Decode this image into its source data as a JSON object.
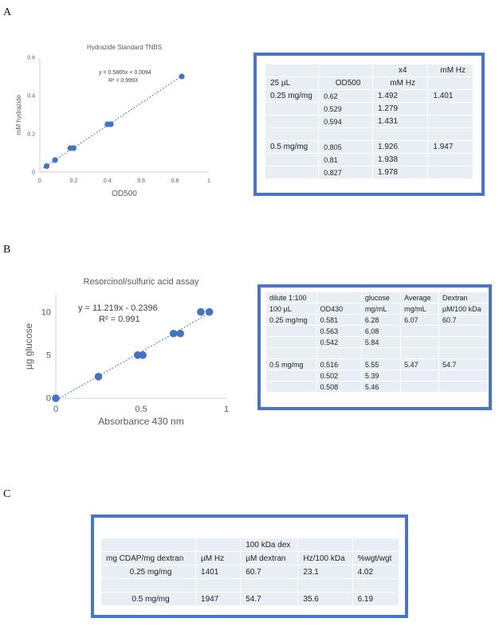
{
  "panels": {
    "a": "A",
    "b": "B",
    "c": "C"
  },
  "chart_data": [
    {
      "type": "scatter",
      "title": "Hydrazide Standard TNBS",
      "xlabel": "OD500",
      "ylabel": "mM hydrazide",
      "xlim": [
        0,
        1
      ],
      "ylim": [
        0,
        0.6
      ],
      "xticks": [
        0,
        0.2,
        0.4,
        0.6,
        0.8,
        1
      ],
      "xtick_labels": [
        "0",
        "0.2",
        "0.4",
        "0.6",
        "0.8",
        "1"
      ],
      "yticks": [
        0,
        0.2,
        0.4,
        0.6
      ],
      "ytick_labels": [
        "0",
        "0.2",
        "0.4",
        "0.6"
      ],
      "points": [
        [
          0.04,
          0.031
        ],
        [
          0.09,
          0.0625
        ],
        [
          0.18,
          0.125
        ],
        [
          0.2,
          0.125
        ],
        [
          0.4,
          0.25
        ],
        [
          0.42,
          0.25
        ],
        [
          0.84,
          0.5
        ]
      ],
      "trendline": {
        "slope": 0.5865,
        "intercept": 0.0094,
        "range": [
          0.02,
          0.85
        ]
      },
      "equation": "y = 0.5865x + 0.0094",
      "r2": "R² = 0.9993",
      "grid": false,
      "color": "#4472c4"
    },
    {
      "type": "scatter",
      "title": "Resorcinol/sulfuric acid assay",
      "xlabel": "Absorbance 430 nm",
      "ylabel": "µg glucose",
      "xlim": [
        0,
        1
      ],
      "ylim": [
        0,
        12
      ],
      "xticks": [
        0,
        0.5,
        1
      ],
      "xtick_labels": [
        "0",
        "0.5",
        "1"
      ],
      "yticks": [
        0,
        5,
        10
      ],
      "ytick_labels": [
        "0",
        "5",
        "10"
      ],
      "points": [
        [
          0,
          0
        ],
        [
          0.25,
          2.5
        ],
        [
          0.48,
          5
        ],
        [
          0.51,
          5
        ],
        [
          0.69,
          7.5
        ],
        [
          0.73,
          7.5
        ],
        [
          0.85,
          10
        ],
        [
          0.9,
          10
        ]
      ],
      "trendline": {
        "slope": 11.219,
        "intercept": -0.2396,
        "range": [
          0.02,
          0.9
        ]
      },
      "equation": "y = 11.219x - 0.2396",
      "r2": "R² = 0.991",
      "grid": false,
      "color": "#4472c4"
    }
  ],
  "tableA": {
    "rows": [
      [
        "",
        "",
        "x4",
        "mM Hz"
      ],
      [
        "25 µL",
        "OD500",
        "mM Hz",
        ""
      ],
      [
        "0.25 mg/mg",
        "0.62",
        "1.492",
        "1.401"
      ],
      [
        "",
        "0.529",
        "1.279",
        ""
      ],
      [
        "",
        "0.594",
        "1.431",
        ""
      ],
      [
        "",
        "",
        "",
        ""
      ],
      [
        "0.5 mg/mg",
        "0.805",
        "1.926",
        "1.947"
      ],
      [
        "",
        "0.81",
        "1.938",
        ""
      ],
      [
        "",
        "0.827",
        "1.978",
        ""
      ]
    ]
  },
  "tableB": {
    "rows": [
      [
        "dilute 1:100",
        "",
        "glucose",
        "Average",
        "Dextran"
      ],
      [
        "100 µL",
        "OD430",
        "mg/mL",
        "mg/mL",
        "µM/100 kDa"
      ],
      [
        "0.25 mg/mg",
        "0.581",
        "6.28",
        "6.07",
        "60.7"
      ],
      [
        "",
        "0.563",
        "6.08",
        "",
        ""
      ],
      [
        "",
        "0.542",
        "5.84",
        "",
        ""
      ],
      [
        "",
        "",
        "",
        "",
        ""
      ],
      [
        "0.5 mg/mg",
        "0.516",
        "5.55",
        "5.47",
        "54.7"
      ],
      [
        "",
        "0.502",
        "5.39",
        "",
        ""
      ],
      [
        "",
        "0.508",
        "5.46",
        "",
        ""
      ]
    ]
  },
  "tableC": {
    "rows": [
      [
        "",
        "",
        "100 kDa dex",
        "",
        ""
      ],
      [
        "mg CDAP/mg dextran",
        "µM Hz",
        "µM dextran",
        "Hz/100 kDa",
        "%wgt/wgt"
      ],
      [
        "0.25 mg/mg",
        "1401",
        "60.7",
        "23.1",
        "4.02"
      ],
      [
        "",
        "",
        "",
        "",
        ""
      ],
      [
        "0.5 mg/mg",
        "1947",
        "54.7",
        "35.6",
        "6.19"
      ]
    ]
  }
}
